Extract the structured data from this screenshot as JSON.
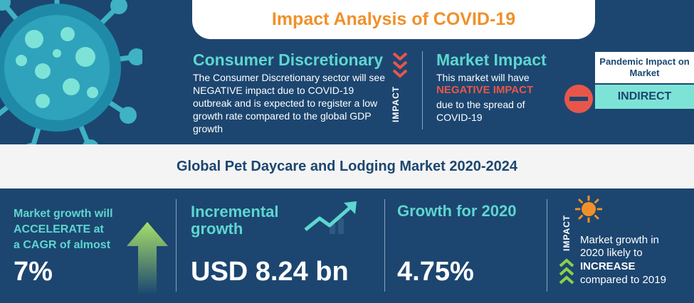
{
  "header": {
    "title": "Impact Analysis of COVID-19"
  },
  "sector": {
    "heading": "Consumer Discretionary",
    "body": "The Consumer Discretionary sector will see NEGATIVE impact due to COVID-19 outbreak and is expected to register a low growth rate compared to the global GDP growth",
    "impact_label": "IMPACT"
  },
  "market_impact": {
    "heading": "Market Impact",
    "line1": "This market will have",
    "emphasis": "NEGATIVE IMPACT",
    "line3": "due to the spread of",
    "line4": "COVID-19"
  },
  "pandemic_impact": {
    "label": "Pandemic Impact on Market",
    "value": "INDIRECT"
  },
  "market_title": "Global Pet Daycare and Lodging Market 2020-2024",
  "cagr": {
    "line1": "Market growth will",
    "line2": "ACCELERATE at",
    "line3": "a CAGR of almost",
    "value": "7%"
  },
  "incremental": {
    "line1": "Incremental",
    "line2": "growth",
    "value": "USD 8.24 bn"
  },
  "growth2020": {
    "label": "Growth for 2020",
    "value": "4.75%"
  },
  "growth_impact": {
    "impact_label": "IMPACT",
    "line1": "Market growth in",
    "line2": "2020 likely to",
    "emphasis": "INCREASE",
    "line4": "compared to 2019"
  },
  "colors": {
    "navy": "#1c4670",
    "teal": "#5ed6cf",
    "orange": "#f0902a",
    "red": "#e8564b",
    "mint": "#7ee3d7"
  },
  "icons": [
    "virus-icon",
    "chevron-down-icon",
    "minus-circle-icon",
    "up-arrow-icon",
    "trend-up-icon",
    "sun-icon",
    "chevron-up-icon"
  ]
}
